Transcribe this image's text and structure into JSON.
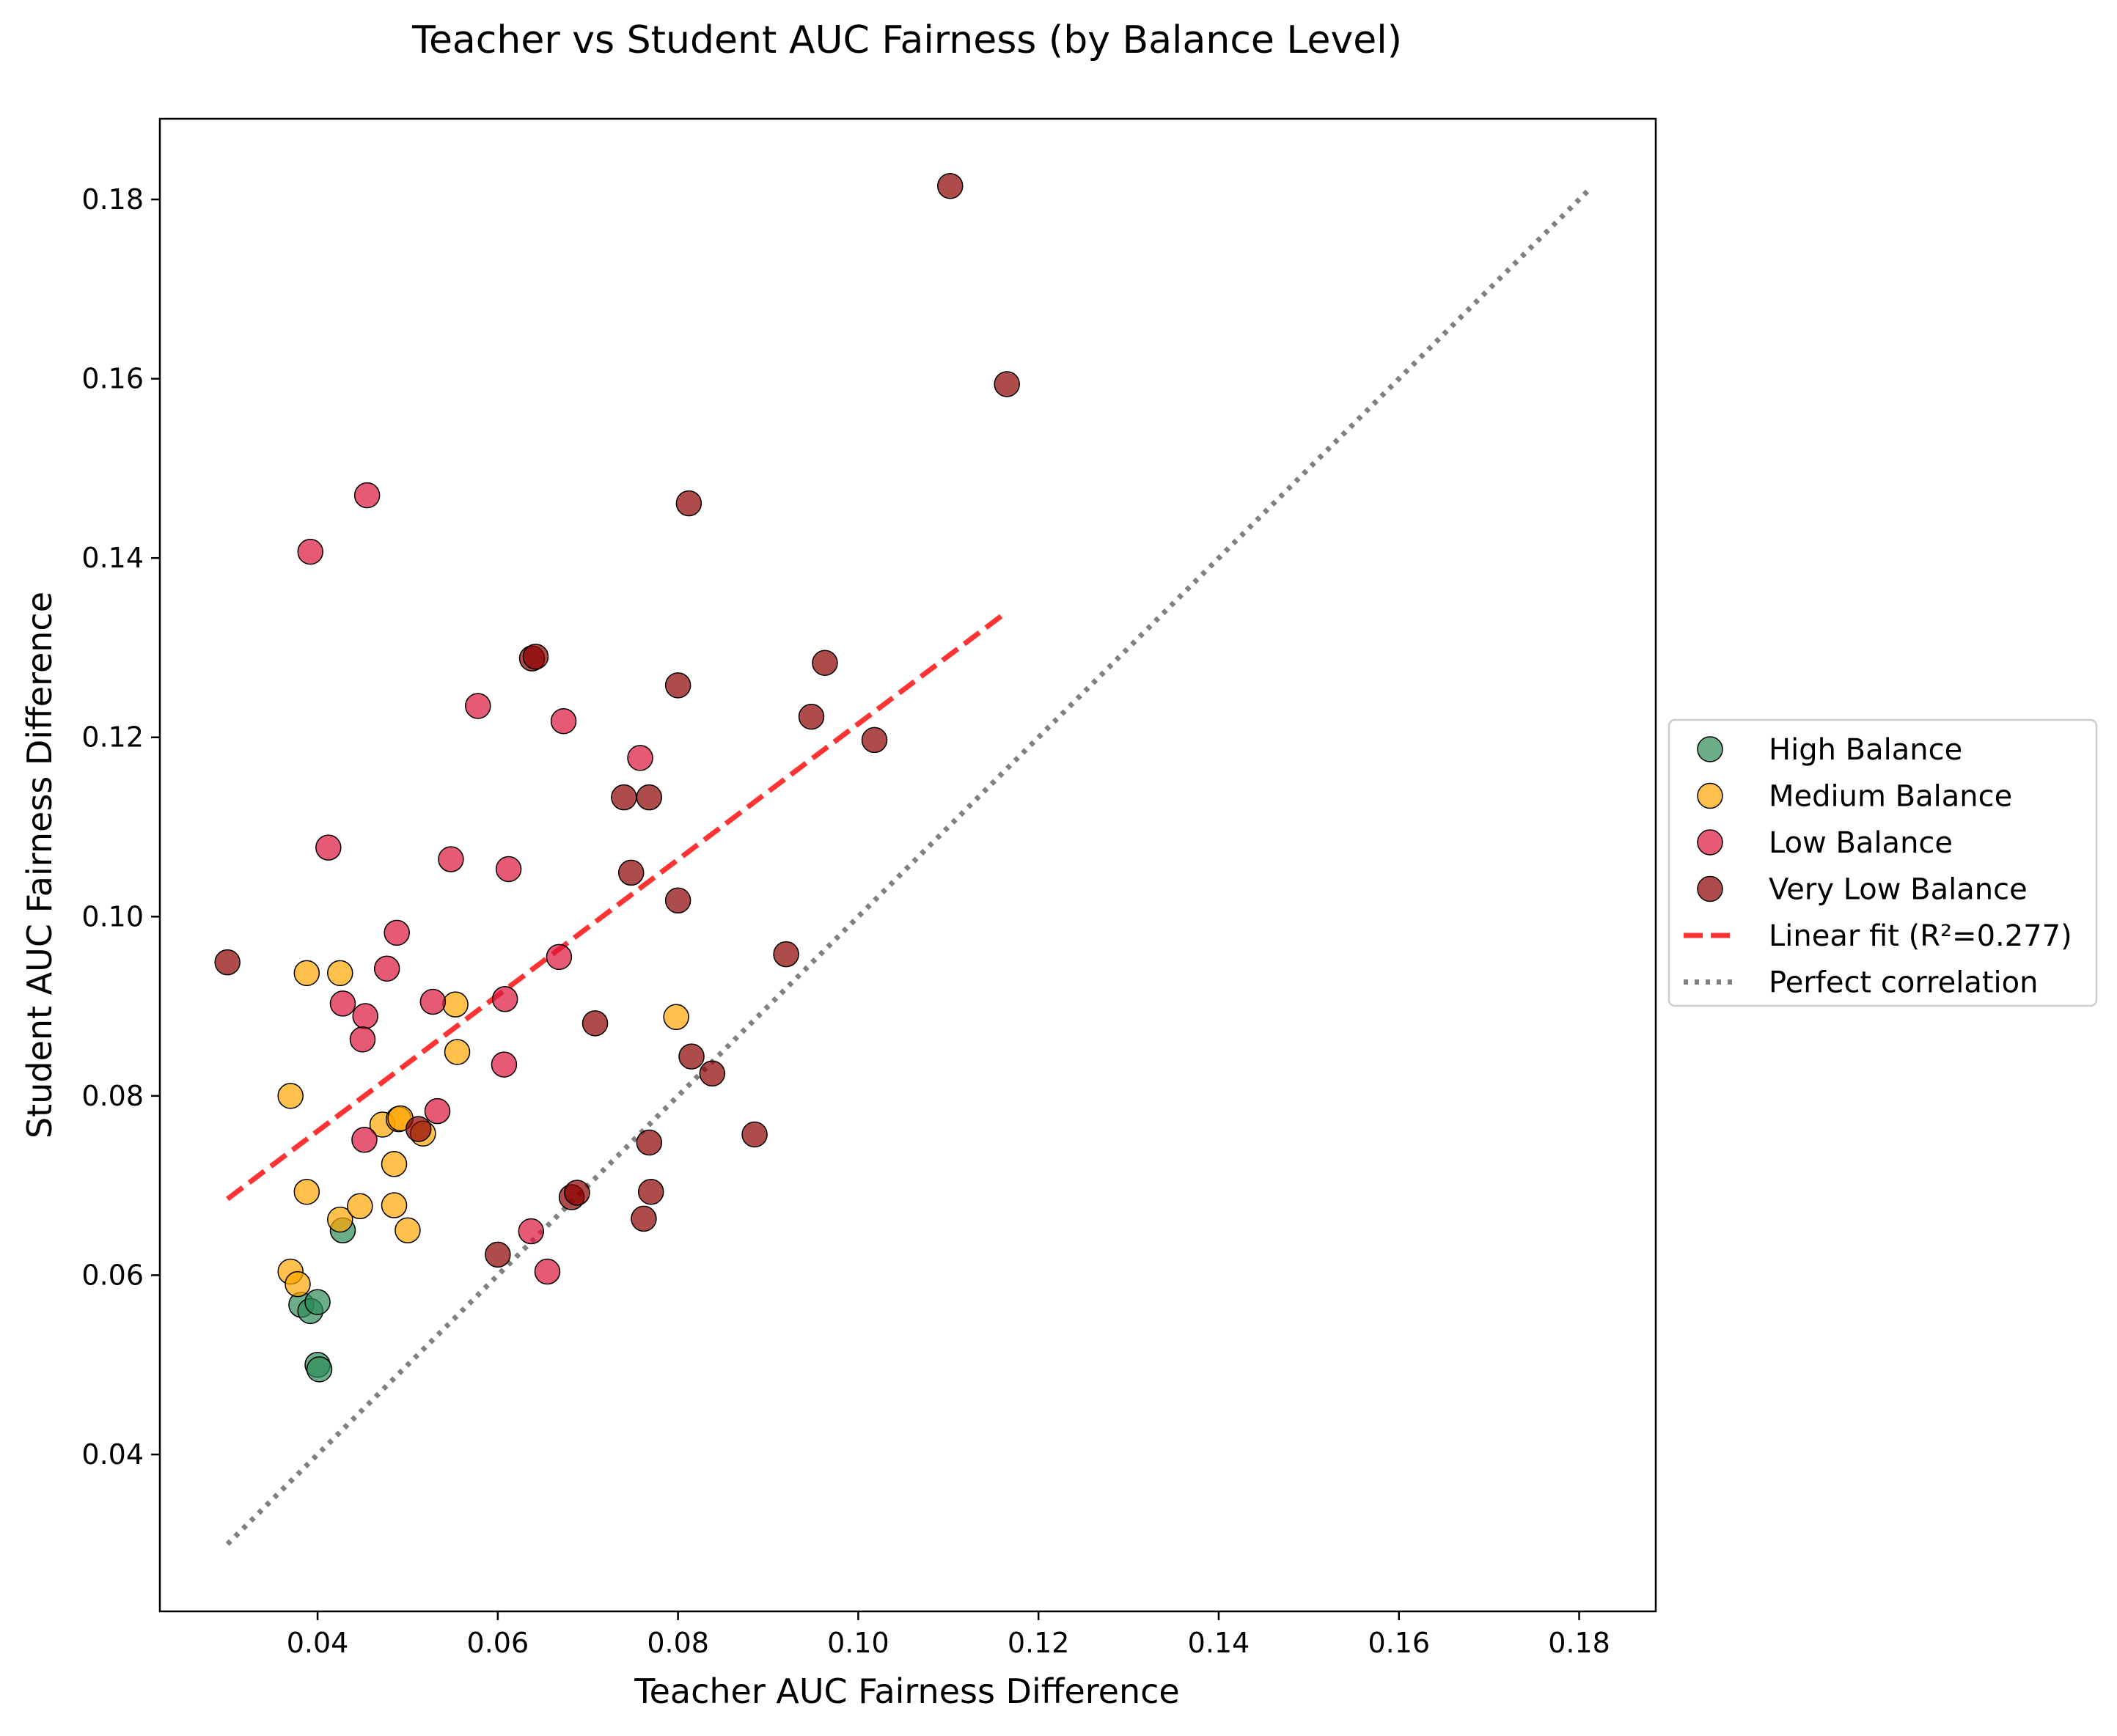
{
  "chart_data": {
    "type": "scatter",
    "title": "Teacher vs Student AUC Fairness (by Balance Level)",
    "xlabel": "Teacher AUC Fairness Difference",
    "ylabel": "Student AUC Fairness Difference",
    "xlim": [
      0.0225,
      0.1885
    ],
    "ylim": [
      0.0225,
      0.189
    ],
    "xticks": [
      "0.04",
      "0.06",
      "0.08",
      "0.10",
      "0.12",
      "0.14",
      "0.16",
      "0.18"
    ],
    "yticks": [
      "0.04",
      "0.06",
      "0.08",
      "0.10",
      "0.12",
      "0.14",
      "0.16",
      "0.18"
    ],
    "grid": false,
    "legend_position": "center-right outside",
    "series": [
      {
        "name": "High Balance",
        "color": "#2e8b57",
        "points": [
          [
            0.0428,
            0.065
          ],
          [
            0.0382,
            0.0567
          ],
          [
            0.0392,
            0.056
          ],
          [
            0.04,
            0.057
          ],
          [
            0.04,
            0.05
          ],
          [
            0.0402,
            0.0495
          ]
        ]
      },
      {
        "name": "Medium Balance",
        "color": "#ffa500",
        "points": [
          [
            0.0388,
            0.0937
          ],
          [
            0.0425,
            0.0937
          ],
          [
            0.037,
            0.08
          ],
          [
            0.0388,
            0.0693
          ],
          [
            0.037,
            0.0604
          ],
          [
            0.0378,
            0.059
          ],
          [
            0.0425,
            0.0662
          ],
          [
            0.0447,
            0.0677
          ],
          [
            0.0472,
            0.0768
          ],
          [
            0.049,
            0.0774
          ],
          [
            0.0485,
            0.0724
          ],
          [
            0.0485,
            0.0678
          ],
          [
            0.05,
            0.065
          ],
          [
            0.0517,
            0.0758
          ],
          [
            0.0553,
            0.0902
          ],
          [
            0.0555,
            0.0849
          ],
          [
            0.0798,
            0.0888
          ],
          [
            0.0492,
            0.0775
          ]
        ]
      },
      {
        "name": "Low Balance",
        "color": "#dc143c",
        "points": [
          [
            0.0392,
            0.1407
          ],
          [
            0.0455,
            0.147
          ],
          [
            0.0412,
            0.1077
          ],
          [
            0.0488,
            0.0982
          ],
          [
            0.0477,
            0.0942
          ],
          [
            0.0428,
            0.0903
          ],
          [
            0.0453,
            0.0889
          ],
          [
            0.045,
            0.0863
          ],
          [
            0.0452,
            0.0751
          ],
          [
            0.0533,
            0.0783
          ],
          [
            0.0528,
            0.0905
          ],
          [
            0.0548,
            0.1064
          ],
          [
            0.0578,
            0.1235
          ],
          [
            0.0612,
            0.1053
          ],
          [
            0.0608,
            0.0908
          ],
          [
            0.0607,
            0.0835
          ],
          [
            0.0673,
            0.1218
          ],
          [
            0.0668,
            0.0955
          ],
          [
            0.0758,
            0.1177
          ],
          [
            0.0637,
            0.0649
          ],
          [
            0.0655,
            0.0604
          ]
        ]
      },
      {
        "name": "Very Low Balance",
        "color": "#8b0000",
        "points": [
          [
            0.03,
            0.0949
          ],
          [
            0.0512,
            0.0763
          ],
          [
            0.0638,
            0.1288
          ],
          [
            0.0642,
            0.129
          ],
          [
            0.06,
            0.0623
          ],
          [
            0.0682,
            0.0687
          ],
          [
            0.0688,
            0.0692
          ],
          [
            0.0708,
            0.0881
          ],
          [
            0.074,
            0.1133
          ],
          [
            0.0748,
            0.1049
          ],
          [
            0.0768,
            0.1133
          ],
          [
            0.0762,
            0.0663
          ],
          [
            0.0768,
            0.0748
          ],
          [
            0.077,
            0.0693
          ],
          [
            0.08,
            0.1258
          ],
          [
            0.08,
            0.1018
          ],
          [
            0.0812,
            0.1461
          ],
          [
            0.0815,
            0.0844
          ],
          [
            0.0838,
            0.0825
          ],
          [
            0.0885,
            0.0757
          ],
          [
            0.092,
            0.0958
          ],
          [
            0.0948,
            0.1223
          ],
          [
            0.0963,
            0.1283
          ],
          [
            0.1018,
            0.1197
          ],
          [
            0.1102,
            0.1815
          ],
          [
            0.1165,
            0.1594
          ]
        ]
      }
    ],
    "lines": [
      {
        "name": "Linear fit (R²=0.277)",
        "color": "#ff0000",
        "style": "dashed",
        "x": [
          0.03,
          0.1165
        ],
        "y": [
          0.0685,
          0.134
        ]
      },
      {
        "name": "Perfect correlation",
        "color": "#808080",
        "style": "dotted",
        "x": [
          0.03,
          0.181
        ],
        "y": [
          0.03,
          0.181
        ]
      }
    ]
  }
}
